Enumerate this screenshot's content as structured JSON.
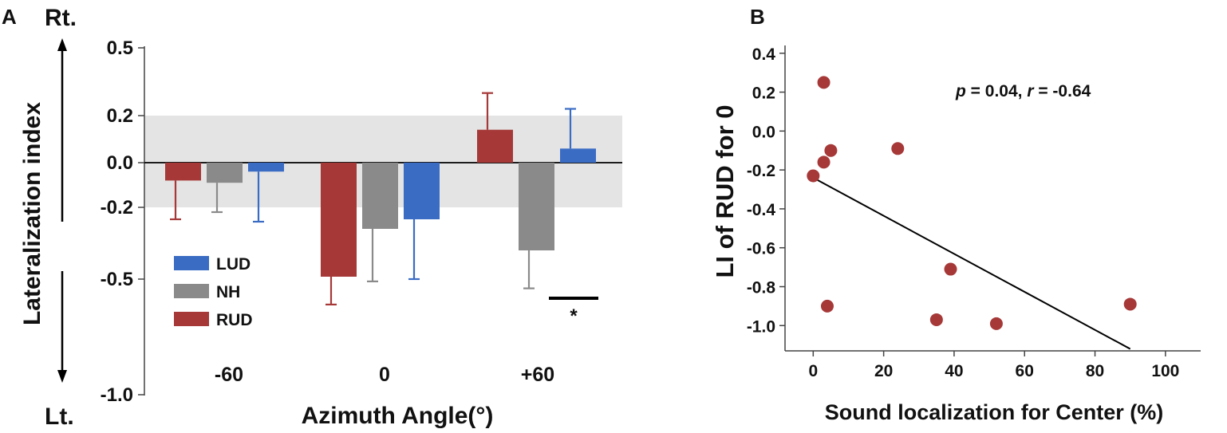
{
  "chart_data": [
    {
      "panel": "A",
      "type": "bar",
      "xlabel": "Azimuth Angle(°)",
      "ylabel": "Lateralization index",
      "top_label": "Rt.",
      "bottom_label": "Lt.",
      "categories": [
        "-60",
        "0",
        "+60"
      ],
      "ylim": [
        -1.0,
        0.5
      ],
      "yticks": [
        "0.5",
        "0.2",
        "0.0",
        "-0.2",
        "-0.5",
        "-1.0"
      ],
      "ytick_values": [
        0.5,
        0.2,
        0.0,
        -0.2,
        -0.5,
        -1.0
      ],
      "shaded_band": [
        -0.2,
        0.2
      ],
      "series": [
        {
          "name": "RUD",
          "color": "#a63838",
          "values": [
            -0.08,
            -0.49,
            0.14
          ],
          "error": [
            0.17,
            0.12,
            0.16
          ]
        },
        {
          "name": "NH",
          "color": "#8a8a8a",
          "values": [
            -0.09,
            -0.29,
            -0.38
          ],
          "error": [
            0.13,
            0.22,
            0.16
          ]
        },
        {
          "name": "LUD",
          "color": "#3a6cc4",
          "values": [
            -0.04,
            -0.25,
            0.06
          ],
          "error": [
            0.22,
            0.25,
            0.17
          ]
        }
      ],
      "legend": [
        "LUD",
        "NH",
        "RUD"
      ],
      "significance": "*"
    },
    {
      "panel": "B",
      "type": "scatter",
      "xlabel": "Sound localization for Center (%)",
      "ylabel": "LI of RUD for 0",
      "xlim": [
        -8,
        110
      ],
      "ylim": [
        -1.13,
        0.44
      ],
      "xticks": [
        "0",
        "20",
        "40",
        "60",
        "80",
        "100"
      ],
      "xtick_values": [
        0,
        20,
        40,
        60,
        80,
        100
      ],
      "yticks": [
        "0.4",
        "0.2",
        "0.0",
        "-0.2",
        "-0.4",
        "-0.6",
        "-0.8",
        "-1.0"
      ],
      "ytick_values": [
        0.4,
        0.2,
        0.0,
        -0.2,
        -0.4,
        -0.6,
        -0.8,
        -1.0
      ],
      "point_color": "#a63838",
      "points": [
        {
          "x": 3,
          "y": 0.25
        },
        {
          "x": 5,
          "y": -0.1
        },
        {
          "x": 3,
          "y": -0.16
        },
        {
          "x": 0,
          "y": -0.23
        },
        {
          "x": 24,
          "y": -0.09
        },
        {
          "x": 39,
          "y": -0.71
        },
        {
          "x": 4,
          "y": -0.9
        },
        {
          "x": 35,
          "y": -0.97
        },
        {
          "x": 52,
          "y": -0.99
        },
        {
          "x": 90,
          "y": -0.89
        }
      ],
      "fit_line": {
        "x": [
          0,
          90
        ],
        "y": [
          -0.24,
          -1.12
        ]
      },
      "annotation": {
        "p_label": "p",
        "p_value": " = 0.04, ",
        "r_label": "r",
        "r_value": " = -0.64"
      }
    }
  ],
  "panel_labels": {
    "a": "A",
    "b": "B"
  }
}
